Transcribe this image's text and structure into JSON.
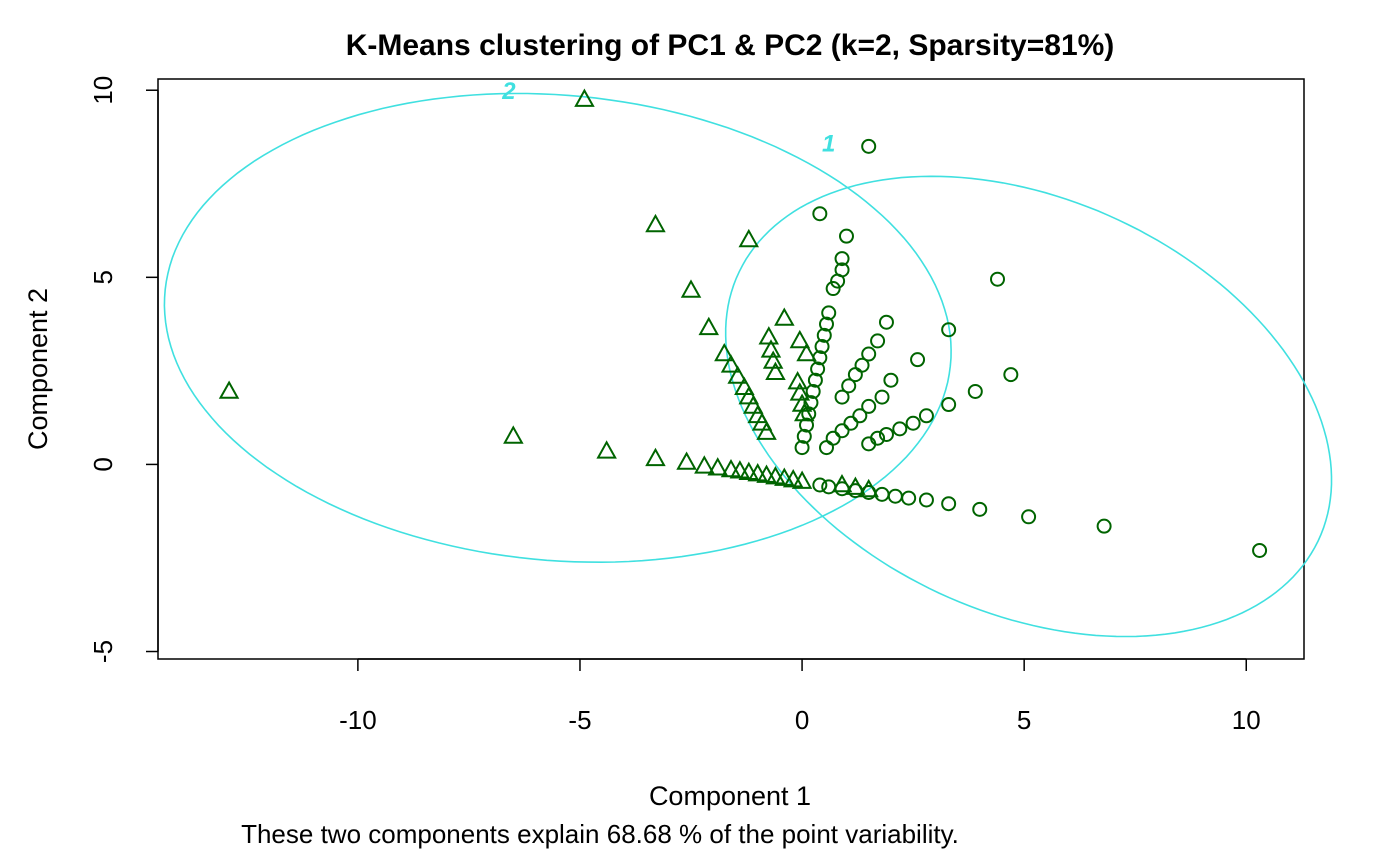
{
  "chart_data": {
    "type": "scatter",
    "title": "K-Means clustering of PC1 & PC2 (k=2, Sparsity=81%)",
    "xlabel": "Component 1",
    "ylabel": "Component 2",
    "subtitle": "These two components explain 68.68 % of the point variability.",
    "xlim": [
      -14.5,
      11.3
    ],
    "ylim": [
      -5.2,
      10.3
    ],
    "xticks": [
      -10,
      -5,
      0,
      5,
      10
    ],
    "yticks": [
      -5,
      0,
      5,
      10
    ],
    "grid": false,
    "point_color": "#006400",
    "ellipse_color": "#40E0E0",
    "clusters": [
      {
        "label": "1",
        "marker": "circle",
        "label_pos": [
          0.6,
          8.6
        ],
        "ellipse": {
          "center": [
            5.1,
            1.55
          ],
          "semi_axes": [
            7.5,
            5.3
          ],
          "angle_deg": -36
        },
        "points": [
          [
            1.5,
            8.5
          ],
          [
            0.4,
            6.7
          ],
          [
            1.0,
            6.1
          ],
          [
            0.9,
            5.5
          ],
          [
            0.9,
            5.2
          ],
          [
            0.8,
            4.9
          ],
          [
            0.7,
            4.7
          ],
          [
            0.6,
            4.05
          ],
          [
            0.55,
            3.75
          ],
          [
            0.5,
            3.45
          ],
          [
            0.45,
            3.15
          ],
          [
            0.4,
            2.85
          ],
          [
            0.35,
            2.55
          ],
          [
            0.3,
            2.25
          ],
          [
            0.25,
            1.95
          ],
          [
            0.2,
            1.65
          ],
          [
            0.15,
            1.35
          ],
          [
            0.1,
            1.05
          ],
          [
            0.05,
            0.75
          ],
          [
            0.0,
            0.45
          ],
          [
            4.4,
            4.95
          ],
          [
            3.3,
            3.6
          ],
          [
            2.6,
            2.8
          ],
          [
            1.9,
            3.8
          ],
          [
            1.7,
            3.3
          ],
          [
            1.5,
            2.95
          ],
          [
            1.35,
            2.65
          ],
          [
            1.2,
            2.4
          ],
          [
            1.05,
            2.1
          ],
          [
            0.9,
            1.8
          ],
          [
            4.7,
            2.4
          ],
          [
            3.9,
            1.95
          ],
          [
            3.3,
            1.6
          ],
          [
            2.8,
            1.3
          ],
          [
            2.0,
            2.25
          ],
          [
            1.8,
            1.8
          ],
          [
            1.5,
            1.55
          ],
          [
            1.3,
            1.3
          ],
          [
            1.1,
            1.1
          ],
          [
            0.9,
            0.9
          ],
          [
            0.7,
            0.7
          ],
          [
            0.55,
            0.45
          ],
          [
            2.5,
            1.1
          ],
          [
            2.2,
            0.95
          ],
          [
            1.9,
            0.8
          ],
          [
            1.7,
            0.7
          ],
          [
            1.5,
            0.55
          ],
          [
            10.3,
            -2.3
          ],
          [
            6.8,
            -1.65
          ],
          [
            5.1,
            -1.4
          ],
          [
            4.0,
            -1.2
          ],
          [
            3.3,
            -1.05
          ],
          [
            2.8,
            -0.95
          ],
          [
            2.4,
            -0.9
          ],
          [
            2.1,
            -0.85
          ],
          [
            1.8,
            -0.8
          ],
          [
            1.5,
            -0.75
          ],
          [
            1.2,
            -0.7
          ],
          [
            0.9,
            -0.65
          ],
          [
            0.6,
            -0.6
          ],
          [
            0.4,
            -0.55
          ]
        ]
      },
      {
        "label": "2",
        "marker": "triangle",
        "label_pos": [
          -6.6,
          10.0
        ],
        "ellipse": {
          "center": [
            -5.5,
            3.65
          ],
          "semi_axes": [
            8.9,
            6.2
          ],
          "angle_deg": -8
        },
        "points": [
          [
            -4.9,
            9.75
          ],
          [
            -3.3,
            6.4
          ],
          [
            -1.2,
            6.0
          ],
          [
            -2.5,
            4.65
          ],
          [
            -0.4,
            3.9
          ],
          [
            -2.1,
            3.65
          ],
          [
            -1.75,
            2.95
          ],
          [
            -1.6,
            2.65
          ],
          [
            -1.45,
            2.35
          ],
          [
            -1.3,
            2.05
          ],
          [
            -1.2,
            1.8
          ],
          [
            -1.1,
            1.55
          ],
          [
            -1.0,
            1.3
          ],
          [
            -0.9,
            1.1
          ],
          [
            -0.8,
            0.85
          ],
          [
            -0.75,
            3.4
          ],
          [
            -0.7,
            3.05
          ],
          [
            -0.65,
            2.75
          ],
          [
            -0.6,
            2.45
          ],
          [
            -0.05,
            3.3
          ],
          [
            0.1,
            2.95
          ],
          [
            -0.1,
            2.2
          ],
          [
            -0.05,
            1.9
          ],
          [
            0.0,
            1.6
          ],
          [
            0.05,
            1.35
          ],
          [
            -12.9,
            1.95
          ],
          [
            -6.5,
            0.75
          ],
          [
            -4.4,
            0.35
          ],
          [
            -3.3,
            0.15
          ],
          [
            -2.6,
            0.05
          ],
          [
            -2.2,
            -0.05
          ],
          [
            -1.9,
            -0.1
          ],
          [
            -1.6,
            -0.15
          ],
          [
            -1.4,
            -0.18
          ],
          [
            -1.2,
            -0.22
          ],
          [
            -1.0,
            -0.26
          ],
          [
            -0.8,
            -0.3
          ],
          [
            -0.6,
            -0.34
          ],
          [
            -0.4,
            -0.38
          ],
          [
            -0.2,
            -0.42
          ],
          [
            0.0,
            -0.46
          ],
          [
            0.9,
            -0.55
          ],
          [
            1.2,
            -0.62
          ],
          [
            1.5,
            -0.68
          ]
        ]
      }
    ]
  }
}
